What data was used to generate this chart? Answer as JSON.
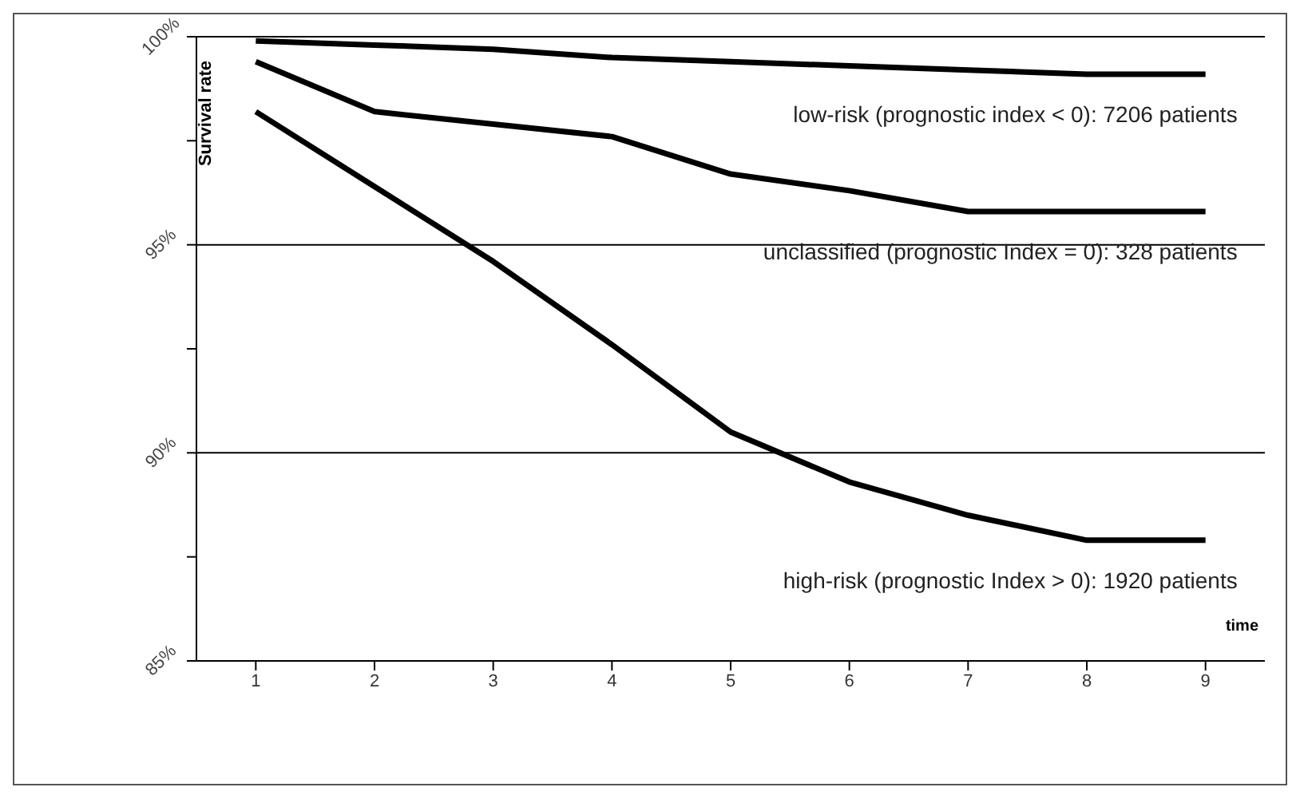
{
  "chart_data": {
    "type": "line",
    "xlabel": "time",
    "ylabel": "Survival rate",
    "categories": [
      "1",
      "2",
      "3",
      "4",
      "5",
      "6",
      "7",
      "8",
      "9"
    ],
    "series": [
      {
        "name": "low-risk (prognostic index < 0): 7206 patients",
        "color": "#000000",
        "values": [
          99.9,
          99.8,
          99.7,
          99.5,
          99.4,
          99.3,
          99.2,
          99.1,
          99.1
        ]
      },
      {
        "name": "unclassified (prognostic Index = 0): 328  patients",
        "color": "#000000",
        "values": [
          99.4,
          98.2,
          97.9,
          97.6,
          96.7,
          96.3,
          95.8,
          95.8,
          95.8
        ]
      },
      {
        "name": "high-risk (prognostic Index > 0): 1920 patients",
        "color": "#000000",
        "values": [
          98.2,
          96.4,
          94.6,
          92.6,
          90.5,
          89.3,
          88.5,
          87.9,
          87.9
        ]
      }
    ],
    "ylim": [
      85,
      100
    ],
    "yticks": [
      {
        "value": 85,
        "label": "85%"
      },
      {
        "value": 87.5,
        "label": null
      },
      {
        "value": 90,
        "label": "90%"
      },
      {
        "value": 92.5,
        "label": null
      },
      {
        "value": 95,
        "label": "95%"
      },
      {
        "value": 97.5,
        "label": null
      },
      {
        "value": 100,
        "label": "100%"
      }
    ],
    "grid": "y",
    "legend": false,
    "marker": "none",
    "line_style": "solid"
  }
}
